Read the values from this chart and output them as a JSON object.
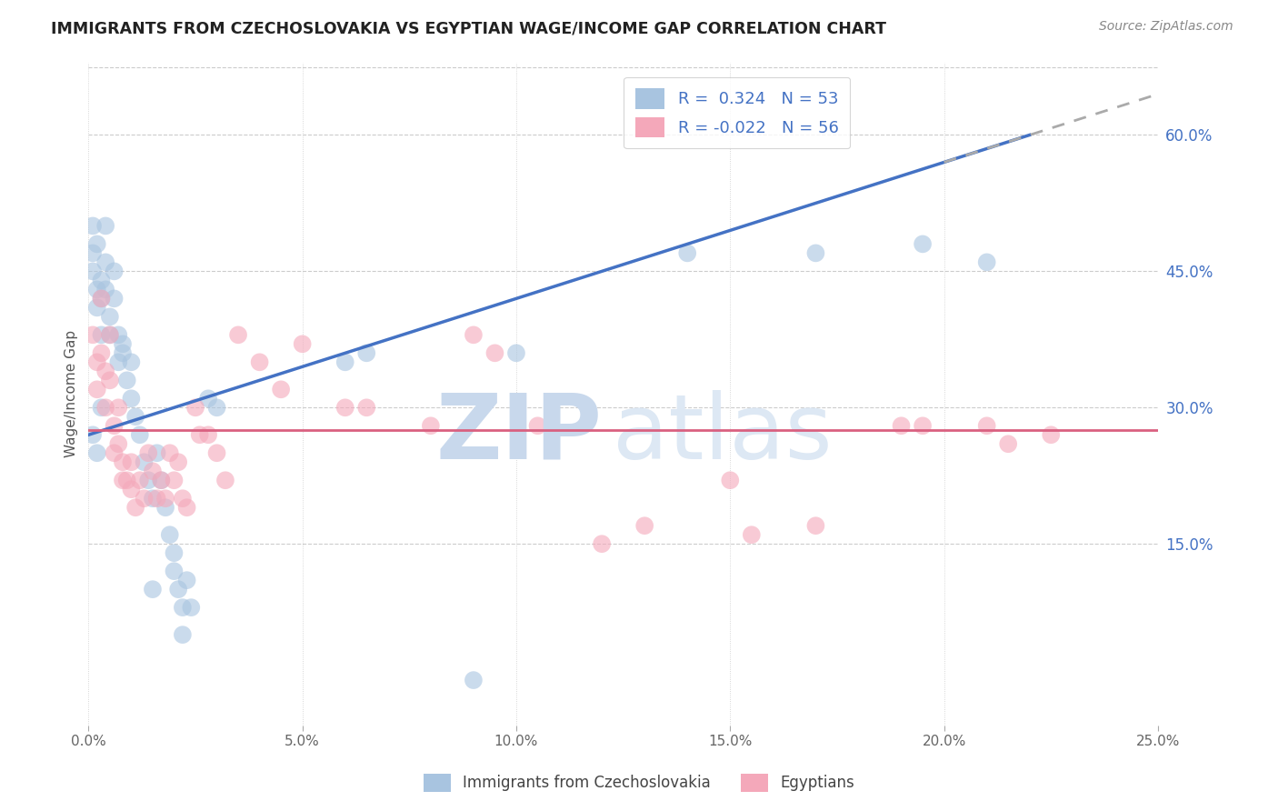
{
  "title": "IMMIGRANTS FROM CZECHOSLOVAKIA VS EGYPTIAN WAGE/INCOME GAP CORRELATION CHART",
  "source": "Source: ZipAtlas.com",
  "ylabel": "Wage/Income Gap",
  "xlim": [
    0.0,
    0.25
  ],
  "ylim": [
    -0.05,
    0.68
  ],
  "x_ticks": [
    0.0,
    0.05,
    0.1,
    0.15,
    0.2,
    0.25
  ],
  "x_tick_labels": [
    "0.0%",
    "5.0%",
    "10.0%",
    "15.0%",
    "20.0%",
    "25.0%"
  ],
  "y_ticks_right": [
    0.15,
    0.3,
    0.45,
    0.6
  ],
  "y_tick_labels_right": [
    "15.0%",
    "30.0%",
    "45.0%",
    "60.0%"
  ],
  "blue_color": "#a8c4e0",
  "pink_color": "#f4a8ba",
  "blue_line_color": "#4472c4",
  "pink_line_color": "#d96080",
  "R_blue": 0.324,
  "N_blue": 53,
  "R_pink": -0.022,
  "N_pink": 56,
  "legend_label_blue": "Immigrants from Czechoslovakia",
  "legend_label_pink": "Egyptians",
  "watermark_zip": "ZIP",
  "watermark_atlas": "atlas",
  "background_color": "#ffffff",
  "blue_scatter": [
    [
      0.001,
      0.5
    ],
    [
      0.001,
      0.47
    ],
    [
      0.001,
      0.45
    ],
    [
      0.002,
      0.48
    ],
    [
      0.002,
      0.43
    ],
    [
      0.002,
      0.41
    ],
    [
      0.003,
      0.44
    ],
    [
      0.003,
      0.42
    ],
    [
      0.003,
      0.38
    ],
    [
      0.004,
      0.5
    ],
    [
      0.004,
      0.46
    ],
    [
      0.004,
      0.43
    ],
    [
      0.005,
      0.4
    ],
    [
      0.005,
      0.38
    ],
    [
      0.006,
      0.42
    ],
    [
      0.006,
      0.45
    ],
    [
      0.007,
      0.38
    ],
    [
      0.007,
      0.35
    ],
    [
      0.008,
      0.37
    ],
    [
      0.008,
      0.36
    ],
    [
      0.009,
      0.33
    ],
    [
      0.01,
      0.35
    ],
    [
      0.01,
      0.31
    ],
    [
      0.011,
      0.29
    ],
    [
      0.012,
      0.27
    ],
    [
      0.013,
      0.24
    ],
    [
      0.014,
      0.22
    ],
    [
      0.015,
      0.2
    ],
    [
      0.015,
      0.1
    ],
    [
      0.016,
      0.25
    ],
    [
      0.017,
      0.22
    ],
    [
      0.018,
      0.19
    ],
    [
      0.019,
      0.16
    ],
    [
      0.02,
      0.14
    ],
    [
      0.02,
      0.12
    ],
    [
      0.021,
      0.1
    ],
    [
      0.022,
      0.08
    ],
    [
      0.022,
      0.05
    ],
    [
      0.023,
      0.11
    ],
    [
      0.024,
      0.08
    ],
    [
      0.001,
      0.27
    ],
    [
      0.002,
      0.25
    ],
    [
      0.003,
      0.3
    ],
    [
      0.028,
      0.31
    ],
    [
      0.03,
      0.3
    ],
    [
      0.06,
      0.35
    ],
    [
      0.065,
      0.36
    ],
    [
      0.09,
      0.0
    ],
    [
      0.1,
      0.36
    ],
    [
      0.14,
      0.47
    ],
    [
      0.17,
      0.47
    ],
    [
      0.195,
      0.48
    ],
    [
      0.21,
      0.46
    ]
  ],
  "pink_scatter": [
    [
      0.001,
      0.38
    ],
    [
      0.002,
      0.35
    ],
    [
      0.002,
      0.32
    ],
    [
      0.003,
      0.42
    ],
    [
      0.003,
      0.36
    ],
    [
      0.004,
      0.34
    ],
    [
      0.004,
      0.3
    ],
    [
      0.005,
      0.38
    ],
    [
      0.005,
      0.33
    ],
    [
      0.006,
      0.28
    ],
    [
      0.006,
      0.25
    ],
    [
      0.007,
      0.3
    ],
    [
      0.007,
      0.26
    ],
    [
      0.008,
      0.24
    ],
    [
      0.008,
      0.22
    ],
    [
      0.009,
      0.22
    ],
    [
      0.01,
      0.24
    ],
    [
      0.01,
      0.21
    ],
    [
      0.011,
      0.19
    ],
    [
      0.012,
      0.22
    ],
    [
      0.013,
      0.2
    ],
    [
      0.014,
      0.25
    ],
    [
      0.015,
      0.23
    ],
    [
      0.016,
      0.2
    ],
    [
      0.017,
      0.22
    ],
    [
      0.018,
      0.2
    ],
    [
      0.019,
      0.25
    ],
    [
      0.02,
      0.22
    ],
    [
      0.021,
      0.24
    ],
    [
      0.022,
      0.2
    ],
    [
      0.023,
      0.19
    ],
    [
      0.025,
      0.3
    ],
    [
      0.026,
      0.27
    ],
    [
      0.028,
      0.27
    ],
    [
      0.03,
      0.25
    ],
    [
      0.032,
      0.22
    ],
    [
      0.035,
      0.38
    ],
    [
      0.04,
      0.35
    ],
    [
      0.045,
      0.32
    ],
    [
      0.05,
      0.37
    ],
    [
      0.06,
      0.3
    ],
    [
      0.065,
      0.3
    ],
    [
      0.08,
      0.28
    ],
    [
      0.09,
      0.38
    ],
    [
      0.095,
      0.36
    ],
    [
      0.105,
      0.28
    ],
    [
      0.12,
      0.15
    ],
    [
      0.13,
      0.17
    ],
    [
      0.15,
      0.22
    ],
    [
      0.155,
      0.16
    ],
    [
      0.17,
      0.17
    ],
    [
      0.19,
      0.28
    ],
    [
      0.195,
      0.28
    ],
    [
      0.21,
      0.28
    ],
    [
      0.215,
      0.26
    ],
    [
      0.225,
      0.27
    ]
  ]
}
